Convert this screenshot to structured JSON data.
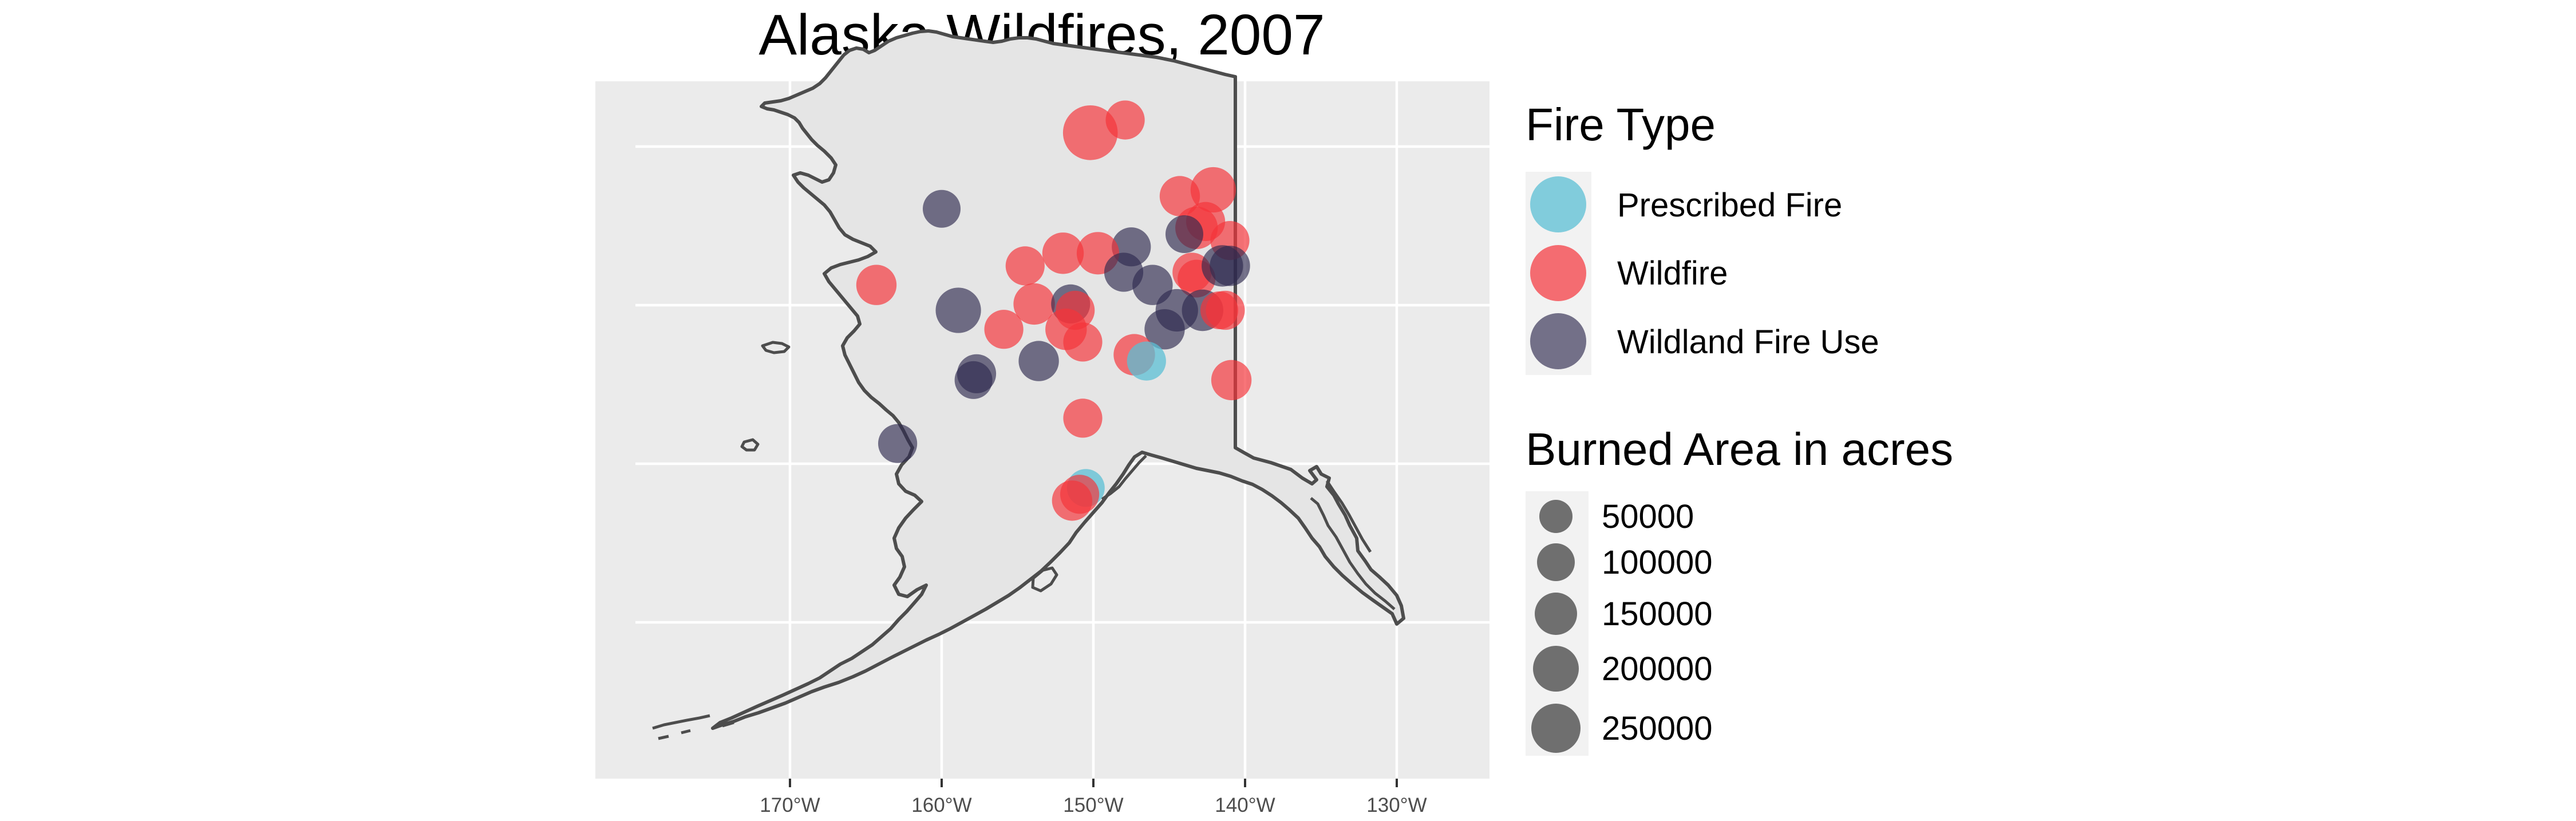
{
  "title": "Alaska Wildfires, 2007",
  "x_ticks": [
    "170°W",
    "160°W",
    "150°W",
    "140°W",
    "130°W"
  ],
  "legend_fire_type": {
    "title": "Fire Type",
    "items": [
      {
        "label": "Prescribed Fire",
        "color": "#5bbfd4"
      },
      {
        "label": "Wildfire",
        "color": "#f5333a"
      },
      {
        "label": "Wildland Fire Use",
        "color": "#2e2a4f"
      }
    ]
  },
  "legend_size": {
    "title": "Burned Area in acres",
    "items": [
      {
        "label": "50000",
        "value": 50000
      },
      {
        "label": "100000",
        "value": 100000
      },
      {
        "label": "150000",
        "value": 150000
      },
      {
        "label": "200000",
        "value": 200000
      },
      {
        "label": "250000",
        "value": 250000
      }
    ]
  },
  "chart_data": {
    "type": "scatter",
    "title": "Alaska Wildfires, 2007",
    "x_ticks": [
      "170°W",
      "160°W",
      "150°W",
      "140°W",
      "130°W"
    ],
    "size_variable": "Burned Area in acres",
    "color_variable": "Fire Type",
    "points": [
      {
        "lon": -150.2,
        "lat": 69.3,
        "type": "Wildfire",
        "acres": 250000
      },
      {
        "lon": -147.9,
        "lat": 69.5,
        "type": "Wildfire",
        "acres": 60000
      },
      {
        "lon": -160.0,
        "lat": 68.1,
        "type": "Wildland Fire Use",
        "acres": 50000
      },
      {
        "lon": -144.3,
        "lat": 68.3,
        "type": "Wildfire",
        "acres": 70000
      },
      {
        "lon": -142.1,
        "lat": 68.4,
        "type": "Wildfire",
        "acres": 120000
      },
      {
        "lon": -143.2,
        "lat": 67.8,
        "type": "Wildfire",
        "acres": 90000
      },
      {
        "lon": -142.6,
        "lat": 67.9,
        "type": "Wildfire",
        "acres": 60000
      },
      {
        "lon": -144.0,
        "lat": 67.7,
        "type": "Wildland Fire Use",
        "acres": 50000
      },
      {
        "lon": -141.0,
        "lat": 67.6,
        "type": "Wildfire",
        "acres": 60000
      },
      {
        "lon": -147.5,
        "lat": 67.5,
        "type": "Wildland Fire Use",
        "acres": 60000
      },
      {
        "lon": -149.7,
        "lat": 67.4,
        "type": "Wildfire",
        "acres": 90000
      },
      {
        "lon": -152.0,
        "lat": 67.4,
        "type": "Wildfire",
        "acres": 80000
      },
      {
        "lon": -154.5,
        "lat": 67.2,
        "type": "Wildfire",
        "acres": 60000
      },
      {
        "lon": -148.0,
        "lat": 67.1,
        "type": "Wildland Fire Use",
        "acres": 60000
      },
      {
        "lon": -143.5,
        "lat": 67.1,
        "type": "Wildfire",
        "acres": 60000
      },
      {
        "lon": -143.2,
        "lat": 67.0,
        "type": "Wildfire",
        "acres": 50000
      },
      {
        "lon": -141.5,
        "lat": 67.2,
        "type": "Wildland Fire Use",
        "acres": 80000
      },
      {
        "lon": -141.0,
        "lat": 67.2,
        "type": "Wildland Fire Use",
        "acres": 70000
      },
      {
        "lon": -164.3,
        "lat": 66.9,
        "type": "Wildfire",
        "acres": 70000
      },
      {
        "lon": -146.1,
        "lat": 66.9,
        "type": "Wildland Fire Use",
        "acres": 70000
      },
      {
        "lon": -153.9,
        "lat": 66.6,
        "type": "Wildfire",
        "acres": 80000
      },
      {
        "lon": -151.5,
        "lat": 66.6,
        "type": "Wildland Fire Use",
        "acres": 60000
      },
      {
        "lon": -151.2,
        "lat": 66.5,
        "type": "Wildfire",
        "acres": 60000
      },
      {
        "lon": -158.9,
        "lat": 66.5,
        "type": "Wildland Fire Use",
        "acres": 120000
      },
      {
        "lon": -144.5,
        "lat": 66.5,
        "type": "Wildland Fire Use",
        "acres": 90000
      },
      {
        "lon": -142.8,
        "lat": 66.5,
        "type": "Wildland Fire Use",
        "acres": 80000
      },
      {
        "lon": -141.3,
        "lat": 66.5,
        "type": "Wildfire",
        "acres": 60000
      },
      {
        "lon": -141.7,
        "lat": 66.5,
        "type": "Wildfire",
        "acres": 50000
      },
      {
        "lon": -145.3,
        "lat": 66.2,
        "type": "Wildland Fire Use",
        "acres": 70000
      },
      {
        "lon": -155.9,
        "lat": 66.2,
        "type": "Wildfire",
        "acres": 60000
      },
      {
        "lon": -151.8,
        "lat": 66.2,
        "type": "Wildfire",
        "acres": 80000
      },
      {
        "lon": -150.7,
        "lat": 66.0,
        "type": "Wildfire",
        "acres": 60000
      },
      {
        "lon": -147.3,
        "lat": 65.8,
        "type": "Wildfire",
        "acres": 80000
      },
      {
        "lon": -146.5,
        "lat": 65.7,
        "type": "Prescribed Fire",
        "acres": 60000
      },
      {
        "lon": -153.6,
        "lat": 65.7,
        "type": "Wildland Fire Use",
        "acres": 70000
      },
      {
        "lon": -157.7,
        "lat": 65.5,
        "type": "Wildland Fire Use",
        "acres": 60000
      },
      {
        "lon": -157.9,
        "lat": 65.4,
        "type": "Wildland Fire Use",
        "acres": 50000
      },
      {
        "lon": -140.9,
        "lat": 65.4,
        "type": "Wildfire",
        "acres": 70000
      },
      {
        "lon": -150.7,
        "lat": 64.8,
        "type": "Wildfire",
        "acres": 60000
      },
      {
        "lon": -162.9,
        "lat": 64.4,
        "type": "Wildland Fire Use",
        "acres": 60000
      },
      {
        "lon": -150.5,
        "lat": 63.7,
        "type": "Prescribed Fire",
        "acres": 50000
      },
      {
        "lon": -150.9,
        "lat": 63.6,
        "type": "Wildfire",
        "acres": 60000
      },
      {
        "lon": -151.4,
        "lat": 63.5,
        "type": "Wildfire",
        "acres": 70000
      }
    ]
  }
}
